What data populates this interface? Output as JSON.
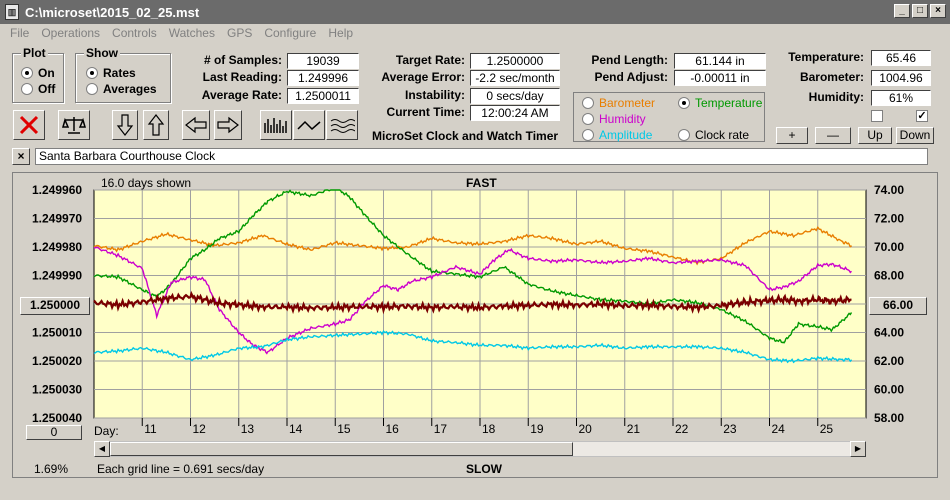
{
  "window": {
    "title": "C:\\microset\\2015_02_25.mst"
  },
  "menu": [
    "File",
    "Operations",
    "Controls",
    "Watches",
    "GPS",
    "Configure",
    "Help"
  ],
  "plot_group": {
    "title": "Plot",
    "options": [
      "On",
      "Off"
    ],
    "selected": "On"
  },
  "show_group": {
    "title": "Show",
    "options": [
      "Rates",
      "Averages"
    ],
    "selected": "Rates"
  },
  "stats": {
    "samples_label": "# of Samples:",
    "samples": "19039",
    "last_reading_label": "Last Reading:",
    "last_reading": "1.249996",
    "average_rate_label": "Average Rate:",
    "average_rate": "1.2500011",
    "target_rate_label": "Target Rate:",
    "target_rate": "1.2500000",
    "average_error_label": "Average Error:",
    "average_error": "-2.2 sec/month",
    "instability_label": "Instability:",
    "instability": "0 secs/day",
    "current_time_label": "Current Time:",
    "current_time": "12:00:24 AM",
    "pend_length_label": "Pend Length:",
    "pend_length": "61.144 in",
    "pend_adjust_label": "Pend Adjust:",
    "pend_adjust": "-0.00011 in",
    "temperature_label": "Temperature:",
    "temperature": "65.46",
    "barometer_label": "Barometer:",
    "barometer": "1004.96",
    "humidity_label": "Humidity:",
    "humidity": "61%"
  },
  "app_title": "MicroSet Clock and Watch Timer",
  "sensor_options": [
    {
      "label": "Barometer",
      "color": "#e87e00",
      "selected": false
    },
    {
      "label": "Temperature",
      "color": "#009900",
      "selected": true
    },
    {
      "label": "Humidity",
      "color": "#cc00cc",
      "selected": false
    },
    {
      "label": "Amplitude",
      "color": "#00c8e6",
      "selected": false
    },
    {
      "label": "Clock rate",
      "color": "#000000",
      "selected": false
    }
  ],
  "scale_buttons": [
    "+",
    "—",
    "Up",
    "Down"
  ],
  "checkbox_right_checked": true,
  "clock_name": "Santa Barbara Courthouse Clock",
  "chart_header": {
    "days_shown": "16.0 days shown",
    "top_label": "FAST",
    "bottom_label": "SLOW"
  },
  "chart_footer": {
    "percent": "1.69%",
    "grid_note": "Each grid line = 0.691 secs/day",
    "day_label": "Day:",
    "zero_btn": "0"
  },
  "left_center_value": "1.250000",
  "right_center_value": "66.00",
  "chart_data": {
    "type": "line",
    "left_axis": {
      "ticks": [
        "1.249960",
        "1.249970",
        "1.249980",
        "1.249990",
        "1.250000",
        "1.250010",
        "1.250020",
        "1.250030",
        "1.250040"
      ],
      "range": [
        1.24996,
        1.25004
      ],
      "inverted": true
    },
    "right_axis": {
      "ticks": [
        "74.00",
        "72.00",
        "70.00",
        "68.00",
        "66.00",
        "64.00",
        "62.00",
        "60.00",
        "58.00"
      ],
      "range": [
        58,
        74
      ]
    },
    "x_days": [
      "11",
      "12",
      "13",
      "14",
      "15",
      "16",
      "17",
      "18",
      "19",
      "20",
      "21",
      "22",
      "23",
      "24",
      "25"
    ],
    "x_range": [
      10.0,
      26.0
    ],
    "series": [
      {
        "name": "Barometer",
        "color": "#e87e00",
        "axis": "right",
        "x": [
          10.0,
          10.5,
          11.0,
          11.5,
          12.0,
          12.5,
          13.0,
          13.5,
          14.0,
          14.5,
          15.0,
          15.5,
          16.0,
          16.5,
          17.0,
          17.5,
          18.0,
          18.5,
          19.0,
          19.5,
          20.0,
          20.5,
          21.0,
          21.5,
          22.0,
          22.5,
          23.0,
          23.5,
          24.0,
          24.5,
          25.0,
          25.5,
          25.7
        ],
        "y": [
          70.1,
          69.8,
          70.4,
          70.9,
          70.5,
          70.1,
          70.3,
          70.8,
          70.2,
          69.8,
          70.3,
          70.1,
          69.9,
          70.0,
          70.6,
          70.3,
          70.2,
          70.4,
          70.8,
          70.6,
          70.2,
          70.4,
          69.9,
          69.7,
          69.3,
          68.9,
          69.2,
          70.3,
          71.1,
          70.8,
          71.3,
          70.4,
          70.1
        ]
      },
      {
        "name": "Temperature",
        "color": "#009900",
        "axis": "right",
        "x": [
          10.0,
          10.5,
          11.0,
          11.3,
          11.6,
          12.0,
          12.3,
          12.6,
          13.0,
          13.3,
          13.6,
          14.0,
          14.5,
          15.0,
          15.3,
          15.6,
          16.0,
          16.5,
          17.0,
          17.5,
          18.0,
          18.5,
          19.0,
          19.5,
          20.0,
          20.5,
          21.0,
          21.5,
          22.0,
          22.5,
          23.0,
          23.5,
          24.0,
          24.3,
          24.6,
          25.0,
          25.3,
          25.7
        ],
        "y": [
          68.0,
          67.9,
          67.0,
          66.5,
          67.4,
          69.2,
          69.8,
          70.6,
          71.1,
          72.2,
          73.2,
          73.9,
          73.6,
          74.2,
          73.5,
          72.3,
          70.8,
          69.5,
          68.3,
          68.1,
          67.9,
          68.6,
          67.4,
          66.9,
          66.6,
          66.3,
          66.2,
          66.0,
          66.3,
          66.1,
          65.6,
          64.8,
          63.6,
          63.3,
          64.6,
          64.4,
          64.2,
          65.4
        ]
      },
      {
        "name": "Humidity",
        "color": "#cc00cc",
        "axis": "right",
        "x": [
          10.0,
          10.5,
          11.0,
          11.3,
          11.6,
          12.0,
          12.3,
          12.6,
          13.0,
          13.3,
          13.6,
          14.0,
          14.5,
          15.0,
          15.3,
          15.6,
          16.0,
          16.3,
          16.6,
          17.0,
          17.5,
          18.0,
          18.3,
          18.6,
          19.0,
          19.5,
          20.0,
          20.5,
          21.0,
          21.5,
          22.0,
          22.5,
          23.0,
          23.5,
          24.0,
          24.3,
          24.6,
          25.0,
          25.3,
          25.7
        ],
        "y": [
          70.0,
          69.4,
          68.5,
          65.2,
          67.5,
          67.9,
          67.7,
          65.6,
          64.0,
          63.1,
          62.6,
          63.6,
          64.3,
          64.6,
          64.9,
          66.1,
          67.3,
          67.0,
          67.6,
          67.9,
          68.6,
          68.1,
          69.1,
          69.8,
          69.2,
          69.0,
          69.1,
          68.9,
          69.0,
          69.2,
          68.9,
          69.0,
          69.1,
          68.7,
          67.0,
          67.2,
          67.6,
          68.7,
          68.8,
          68.3
        ]
      },
      {
        "name": "Amplitude",
        "color": "#00c8e6",
        "axis": "right",
        "x": [
          10.0,
          10.5,
          11.0,
          11.5,
          12.0,
          12.5,
          13.0,
          13.5,
          14.0,
          14.5,
          15.0,
          15.5,
          16.0,
          16.5,
          17.0,
          17.5,
          18.0,
          18.5,
          19.0,
          19.5,
          20.0,
          20.5,
          21.0,
          21.5,
          22.0,
          22.5,
          23.0,
          23.5,
          24.0,
          24.5,
          25.0,
          25.5,
          25.7
        ],
        "y": [
          62.6,
          62.7,
          62.9,
          62.6,
          62.1,
          62.4,
          62.9,
          63.0,
          63.5,
          63.7,
          63.8,
          63.9,
          64.0,
          63.9,
          63.4,
          63.3,
          63.1,
          63.1,
          62.9,
          63.0,
          63.0,
          63.1,
          62.9,
          63.0,
          63.0,
          63.0,
          62.9,
          62.6,
          62.1,
          62.0,
          62.2,
          62.1,
          62.1
        ]
      },
      {
        "name": "Clock rate",
        "color": "#7a0000",
        "axis": "left",
        "x": [
          10.0,
          10.5,
          11.0,
          11.5,
          12.0,
          12.3,
          12.6,
          13.0,
          13.5,
          14.0,
          14.5,
          15.0,
          15.5,
          16.0,
          16.5,
          17.0,
          17.5,
          18.0,
          18.5,
          19.0,
          19.5,
          20.0,
          20.5,
          21.0,
          21.5,
          22.0,
          22.5,
          23.0,
          23.3,
          23.6,
          24.0,
          24.3,
          24.6,
          25.0,
          25.3,
          25.7
        ],
        "y": [
          1.2499995,
          1.2500003,
          1.2499993,
          1.249998,
          1.2499974,
          1.2499985,
          1.2499997,
          1.2500003,
          1.250001,
          1.2500011,
          1.2500013,
          1.2500012,
          1.2500009,
          1.250001,
          1.2500008,
          1.2500012,
          1.250001,
          1.2500012,
          1.2500008,
          1.2500004,
          1.2500002,
          1.2500003,
          1.2500001,
          1.2500006,
          1.2500004,
          1.2500009,
          1.2500011,
          1.2500006,
          1.2499998,
          1.2499992,
          1.2499988,
          1.2499984,
          1.249999,
          1.2499985,
          1.249999,
          1.2499985
        ]
      }
    ]
  }
}
